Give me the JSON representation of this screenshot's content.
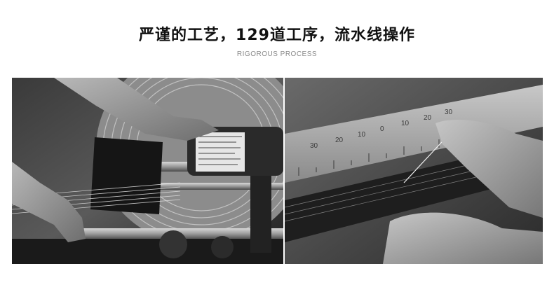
{
  "header": {
    "title": "严谨的工艺，129道工序，流水线操作",
    "subtitle": "RIGOROUS PROCESS"
  },
  "photos": [
    {
      "name": "weaving-machine-photo",
      "tone": "monochrome"
    },
    {
      "name": "needle-threading-photo",
      "tone": "monochrome"
    }
  ],
  "ruler": {
    "labels": [
      "30",
      "20",
      "10",
      "0",
      "10",
      "20",
      "30"
    ]
  }
}
